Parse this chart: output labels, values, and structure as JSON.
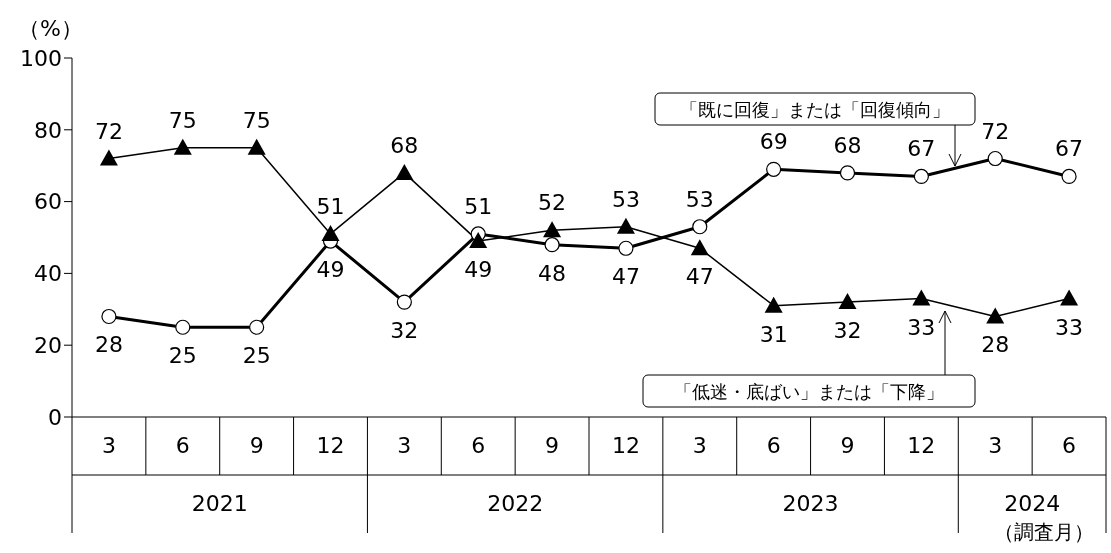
{
  "chart_data": {
    "type": "line",
    "ylabel": "（%）",
    "xlabel": "（調査月）",
    "categories": [
      "3",
      "6",
      "9",
      "12",
      "3",
      "6",
      "9",
      "12",
      "3",
      "6",
      "9",
      "12",
      "3",
      "6"
    ],
    "annotations": [
      "2021",
      "2022",
      "2023",
      "2024"
    ],
    "series": [
      {
        "name": "「既に回復」または「回復傾向」",
        "color": "#000000",
        "marker": "circle",
        "values": [
          28,
          25,
          25,
          49,
          32,
          51,
          48,
          47,
          53,
          69,
          68,
          67,
          72,
          67
        ]
      },
      {
        "name": "「低迷・底ばい」または「下降」",
        "color": "#000000",
        "marker": "triangle",
        "values": [
          72,
          75,
          75,
          51,
          68,
          49,
          52,
          53,
          47,
          31,
          32,
          33,
          28,
          33
        ]
      }
    ],
    "ylim": [
      0,
      100
    ],
    "yticks": [
      0,
      20,
      40,
      60,
      80,
      100
    ],
    "grid": false,
    "legend": false,
    "data_labels": true,
    "line_style": "solid"
  }
}
